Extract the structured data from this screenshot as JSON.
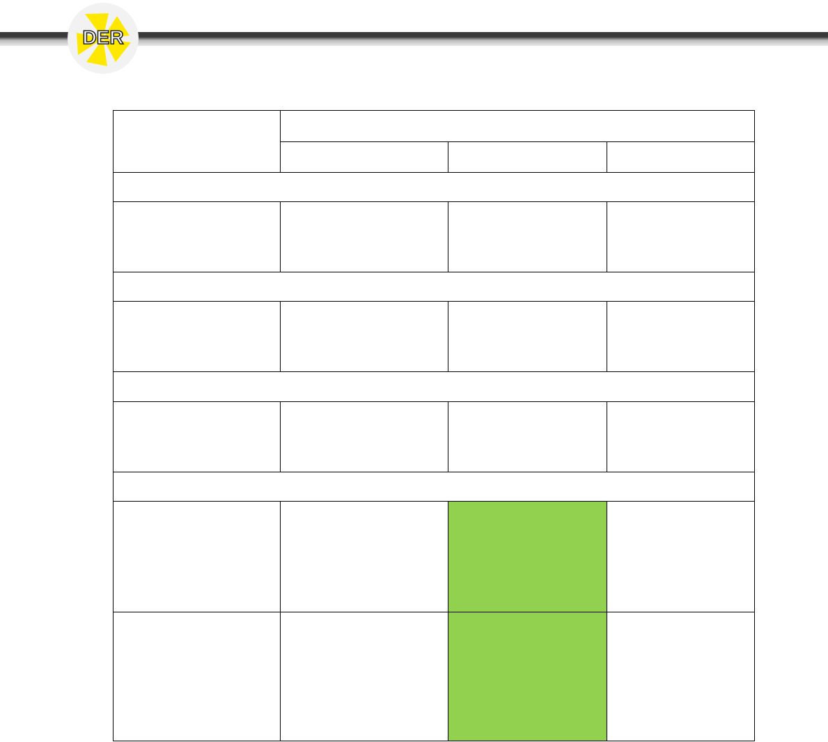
{
  "header": {
    "logo_text": "DER",
    "colors": {
      "bar_dark": "#3a3a3a",
      "logo_yellow": "#ffe800",
      "logo_bg": "#f2f2f2"
    }
  },
  "table": {
    "highlight_color": "#92d050",
    "header_group_label": "",
    "column_labels": [
      "",
      "",
      ""
    ],
    "sections": [
      {
        "title": "",
        "rows": [
          [
            "",
            "",
            "",
            ""
          ]
        ]
      },
      {
        "title": "",
        "rows": [
          [
            "",
            "",
            "",
            ""
          ]
        ]
      },
      {
        "title": "",
        "rows": [
          [
            "",
            "",
            "",
            ""
          ]
        ]
      },
      {
        "title": "",
        "rows": [
          [
            "",
            "",
            "",
            ""
          ],
          [
            "",
            "",
            "",
            ""
          ]
        ]
      }
    ]
  }
}
